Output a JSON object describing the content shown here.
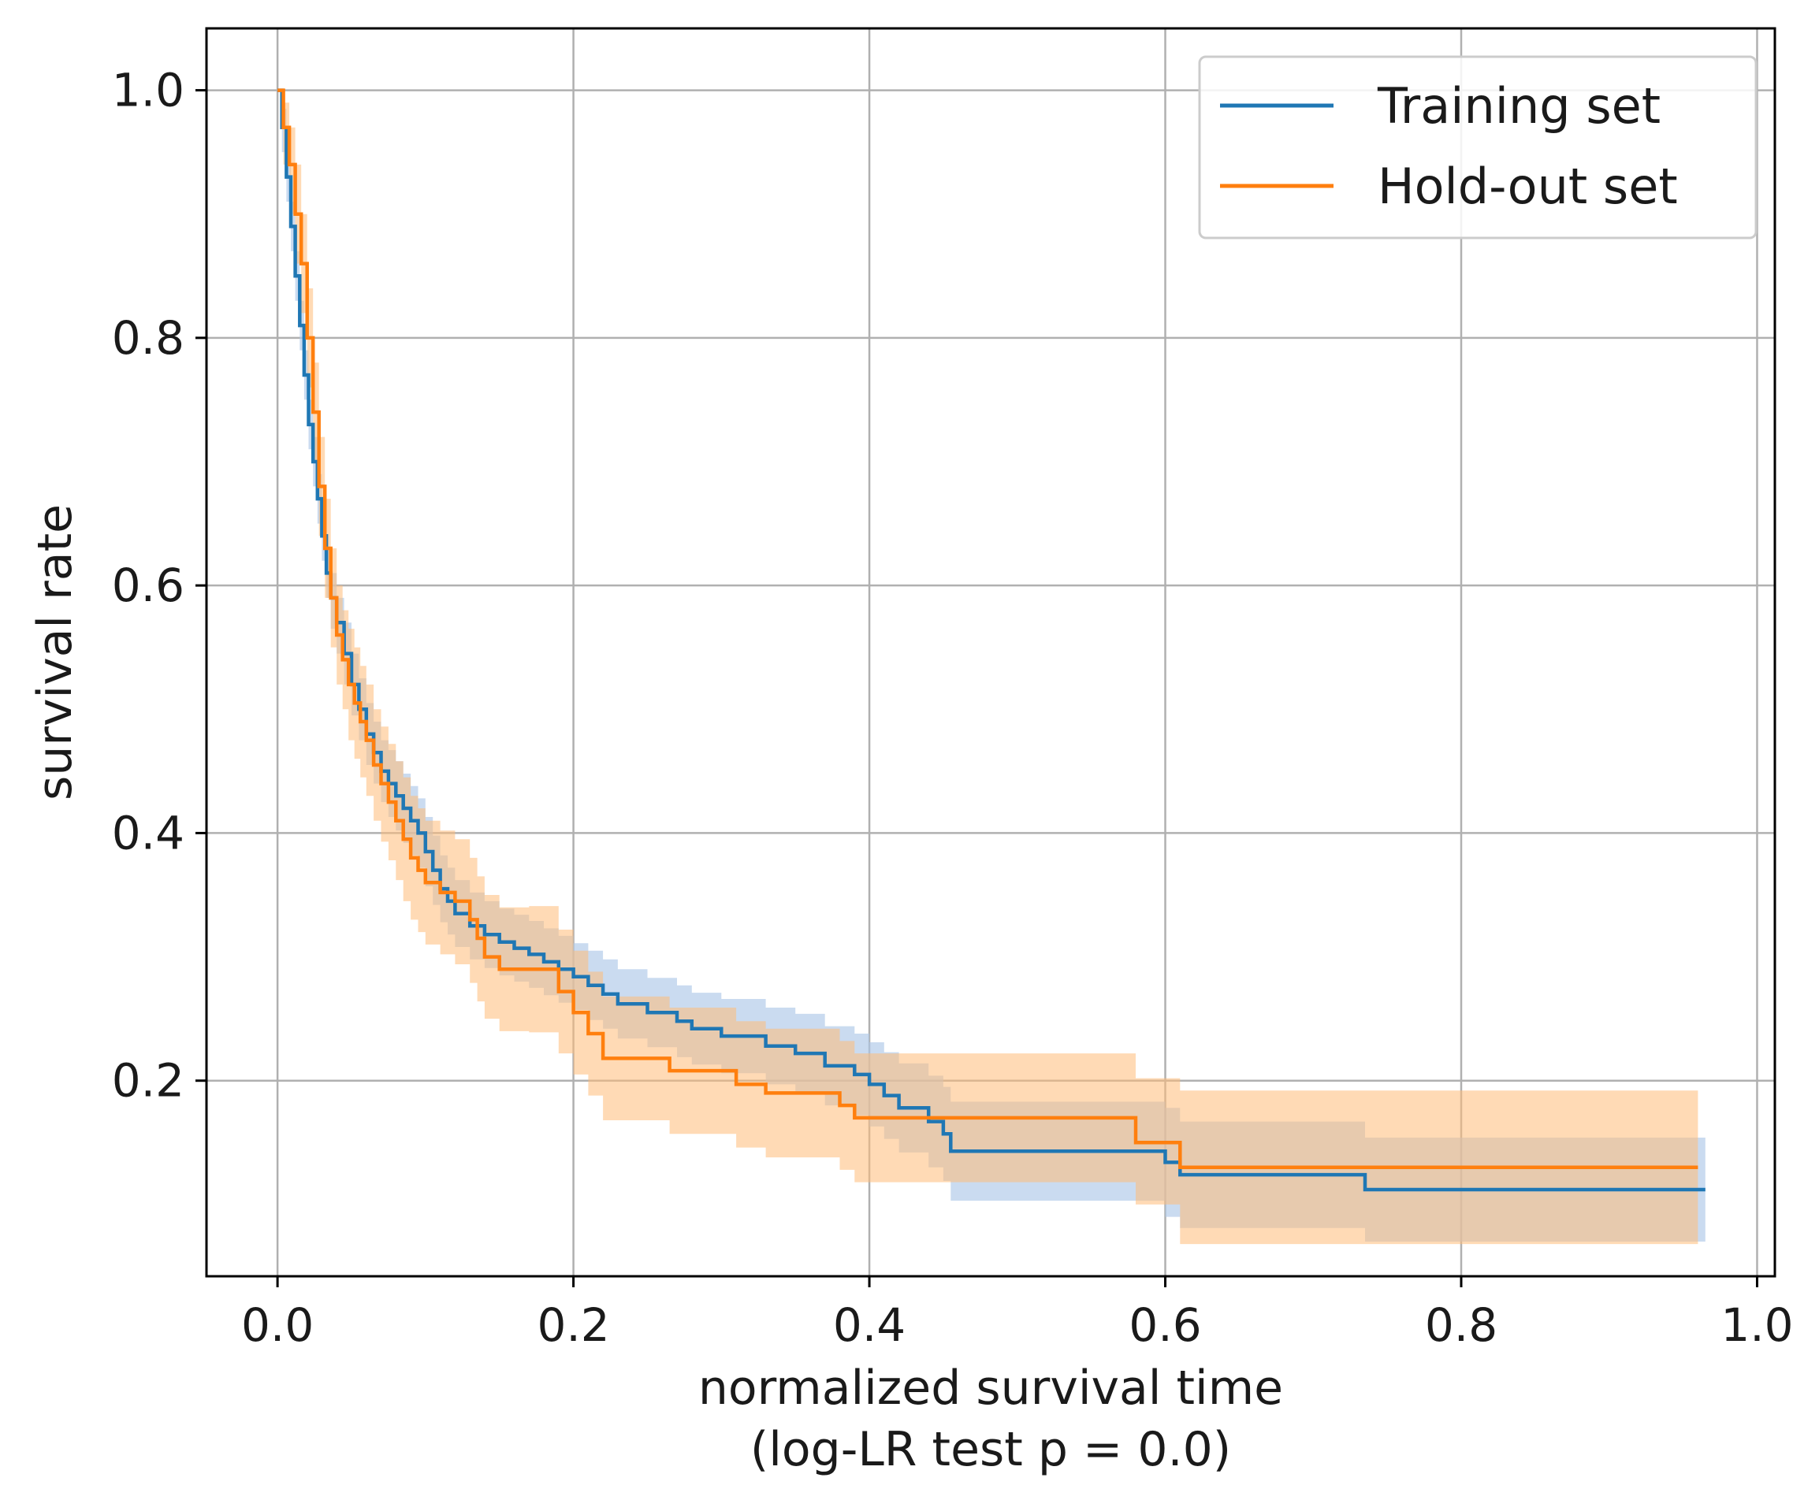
{
  "chart_data": {
    "type": "line",
    "step": true,
    "xlabel": "normalized survival time",
    "xlabel_line2": "(log-LR test p = 0.0)",
    "ylabel": "survival rate",
    "xlim": [
      -0.048,
      1.012
    ],
    "ylim": [
      0.042,
      1.05
    ],
    "xticks": [
      0.0,
      0.2,
      0.4,
      0.6,
      0.8,
      1.0
    ],
    "xtick_labels": [
      "0.0",
      "0.2",
      "0.4",
      "0.6",
      "0.8",
      "1.0"
    ],
    "yticks": [
      0.2,
      0.4,
      0.6,
      0.8,
      1.0
    ],
    "ytick_labels": [
      "0.2",
      "0.4",
      "0.6",
      "0.8",
      "1.0"
    ],
    "grid": true,
    "legend_position": "top-right",
    "series": [
      {
        "name": "Training set",
        "color": "#1f77b4",
        "band_color": "#aec7e8",
        "x": [
          0.0,
          0.003,
          0.006,
          0.009,
          0.012,
          0.015,
          0.018,
          0.021,
          0.024,
          0.027,
          0.03,
          0.033,
          0.036,
          0.04,
          0.045,
          0.05,
          0.055,
          0.06,
          0.065,
          0.07,
          0.075,
          0.08,
          0.085,
          0.09,
          0.095,
          0.1,
          0.105,
          0.11,
          0.115,
          0.12,
          0.13,
          0.14,
          0.15,
          0.16,
          0.17,
          0.18,
          0.19,
          0.2,
          0.21,
          0.22,
          0.23,
          0.25,
          0.27,
          0.28,
          0.3,
          0.33,
          0.35,
          0.37,
          0.39,
          0.4,
          0.41,
          0.42,
          0.44,
          0.45,
          0.455,
          0.6,
          0.61,
          0.735,
          0.965
        ],
        "y": [
          1.0,
          0.97,
          0.93,
          0.89,
          0.85,
          0.81,
          0.77,
          0.73,
          0.7,
          0.67,
          0.64,
          0.61,
          0.59,
          0.57,
          0.545,
          0.52,
          0.5,
          0.48,
          0.465,
          0.45,
          0.44,
          0.43,
          0.42,
          0.41,
          0.4,
          0.385,
          0.37,
          0.355,
          0.345,
          0.335,
          0.325,
          0.318,
          0.312,
          0.307,
          0.302,
          0.296,
          0.29,
          0.284,
          0.277,
          0.27,
          0.262,
          0.255,
          0.248,
          0.242,
          0.236,
          0.228,
          0.222,
          0.212,
          0.205,
          0.197,
          0.188,
          0.178,
          0.167,
          0.157,
          0.143,
          0.134,
          0.124,
          0.112,
          0.112
        ],
        "lower": [
          1.0,
          0.95,
          0.91,
          0.87,
          0.83,
          0.79,
          0.75,
          0.71,
          0.68,
          0.65,
          0.62,
          0.59,
          0.565,
          0.545,
          0.52,
          0.495,
          0.475,
          0.455,
          0.44,
          0.425,
          0.413,
          0.402,
          0.392,
          0.382,
          0.372,
          0.357,
          0.342,
          0.328,
          0.318,
          0.308,
          0.298,
          0.291,
          0.285,
          0.28,
          0.275,
          0.269,
          0.263,
          0.257,
          0.249,
          0.242,
          0.234,
          0.227,
          0.219,
          0.213,
          0.206,
          0.197,
          0.19,
          0.18,
          0.172,
          0.163,
          0.153,
          0.142,
          0.13,
          0.119,
          0.103,
          0.09,
          0.081,
          0.07,
          0.07
        ],
        "upper": [
          1.0,
          0.985,
          0.95,
          0.91,
          0.87,
          0.83,
          0.79,
          0.75,
          0.72,
          0.69,
          0.66,
          0.63,
          0.61,
          0.59,
          0.57,
          0.545,
          0.525,
          0.505,
          0.49,
          0.475,
          0.467,
          0.458,
          0.448,
          0.438,
          0.428,
          0.413,
          0.398,
          0.382,
          0.372,
          0.362,
          0.352,
          0.345,
          0.339,
          0.334,
          0.329,
          0.323,
          0.317,
          0.311,
          0.305,
          0.298,
          0.29,
          0.283,
          0.277,
          0.271,
          0.266,
          0.259,
          0.254,
          0.244,
          0.238,
          0.231,
          0.223,
          0.214,
          0.204,
          0.195,
          0.183,
          0.178,
          0.167,
          0.154,
          0.154
        ]
      },
      {
        "name": "Hold-out set",
        "color": "#ff7f0e",
        "band_color": "#ffbb78",
        "x": [
          0.0,
          0.004,
          0.008,
          0.012,
          0.016,
          0.02,
          0.024,
          0.028,
          0.032,
          0.036,
          0.04,
          0.044,
          0.048,
          0.052,
          0.056,
          0.06,
          0.065,
          0.07,
          0.075,
          0.08,
          0.085,
          0.09,
          0.095,
          0.1,
          0.11,
          0.12,
          0.13,
          0.135,
          0.14,
          0.15,
          0.17,
          0.19,
          0.2,
          0.21,
          0.22,
          0.265,
          0.31,
          0.33,
          0.38,
          0.39,
          0.58,
          0.61,
          0.96
        ],
        "y": [
          1.0,
          0.97,
          0.94,
          0.9,
          0.86,
          0.8,
          0.74,
          0.68,
          0.63,
          0.59,
          0.56,
          0.54,
          0.52,
          0.505,
          0.49,
          0.475,
          0.455,
          0.44,
          0.425,
          0.41,
          0.395,
          0.38,
          0.37,
          0.36,
          0.352,
          0.345,
          0.33,
          0.315,
          0.3,
          0.29,
          0.29,
          0.272,
          0.255,
          0.238,
          0.218,
          0.208,
          0.197,
          0.19,
          0.18,
          0.17,
          0.15,
          0.13,
          0.13
        ],
        "lower": [
          1.0,
          0.94,
          0.9,
          0.86,
          0.82,
          0.76,
          0.7,
          0.64,
          0.59,
          0.55,
          0.52,
          0.5,
          0.475,
          0.46,
          0.445,
          0.43,
          0.41,
          0.393,
          0.378,
          0.362,
          0.345,
          0.33,
          0.32,
          0.31,
          0.302,
          0.294,
          0.279,
          0.264,
          0.25,
          0.24,
          0.239,
          0.222,
          0.205,
          0.188,
          0.168,
          0.157,
          0.146,
          0.138,
          0.128,
          0.118,
          0.1,
          0.068,
          0.068
        ],
        "upper": [
          1.0,
          0.99,
          0.97,
          0.94,
          0.9,
          0.84,
          0.78,
          0.72,
          0.67,
          0.63,
          0.6,
          0.58,
          0.565,
          0.55,
          0.535,
          0.52,
          0.5,
          0.486,
          0.472,
          0.458,
          0.445,
          0.43,
          0.42,
          0.41,
          0.402,
          0.395,
          0.38,
          0.365,
          0.35,
          0.34,
          0.341,
          0.322,
          0.305,
          0.288,
          0.268,
          0.259,
          0.248,
          0.242,
          0.232,
          0.222,
          0.202,
          0.192,
          0.192
        ]
      }
    ]
  }
}
